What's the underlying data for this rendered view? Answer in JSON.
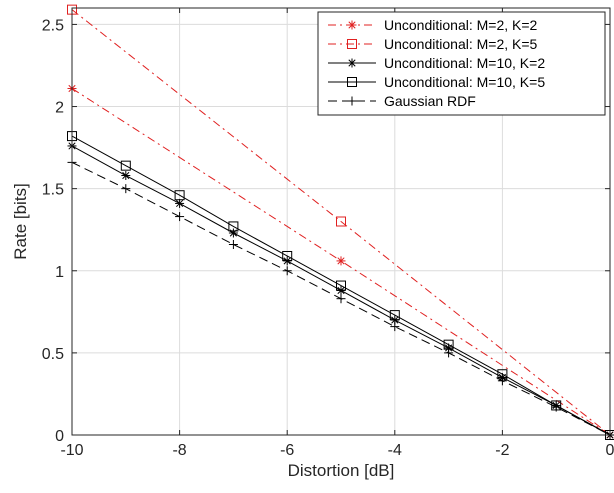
{
  "chart_data": {
    "type": "line",
    "xlabel": "Distortion [dB]",
    "ylabel": "Rate [bits]",
    "xlim": [
      -10,
      0
    ],
    "ylim": [
      0,
      2.6
    ],
    "xticks": [
      -10,
      -8,
      -6,
      -4,
      -2,
      0
    ],
    "yticks": [
      0,
      0.5,
      1,
      1.5,
      2,
      2.5
    ],
    "xtick_labels": [
      "-10",
      "-8",
      "-6",
      "-4",
      "-2",
      "0"
    ],
    "ytick_labels": [
      "0",
      "0.5",
      "1",
      "1.5",
      "2",
      "2.5"
    ],
    "grid": true,
    "legend_position": "top-right",
    "series": [
      {
        "name": "Unconditional: M=2, K=2",
        "color": "#e02020",
        "line_style": "dash-dot",
        "marker": "asterisk",
        "x": [
          -10,
          -5,
          0
        ],
        "y": [
          2.11,
          1.06,
          0.0
        ]
      },
      {
        "name": "Unconditional: M=2, K=5",
        "color": "#e02020",
        "line_style": "dash-dot",
        "marker": "square",
        "x": [
          -10,
          -5,
          0
        ],
        "y": [
          2.59,
          1.3,
          0.0
        ]
      },
      {
        "name": "Unconditional: M=10, K=2",
        "color": "#000000",
        "line_style": "solid",
        "marker": "asterisk",
        "x": [
          -10,
          -9,
          -8,
          -7,
          -6,
          -5,
          -4,
          -3,
          -2,
          -1,
          0
        ],
        "y": [
          1.76,
          1.58,
          1.41,
          1.23,
          1.06,
          0.88,
          0.7,
          0.53,
          0.35,
          0.18,
          0.0
        ]
      },
      {
        "name": "Unconditional: M=10, K=5",
        "color": "#000000",
        "line_style": "solid",
        "marker": "square",
        "x": [
          -10,
          -9,
          -8,
          -7,
          -6,
          -5,
          -4,
          -3,
          -2,
          -1,
          0
        ],
        "y": [
          1.82,
          1.64,
          1.46,
          1.27,
          1.09,
          0.91,
          0.73,
          0.55,
          0.37,
          0.18,
          0.0
        ]
      },
      {
        "name": "Gaussian RDF",
        "color": "#000000",
        "line_style": "dashed",
        "marker": "plus",
        "x": [
          -10,
          -9,
          -8,
          -7,
          -6,
          -5,
          -4,
          -3,
          -2,
          -1,
          0
        ],
        "y": [
          1.66,
          1.5,
          1.33,
          1.16,
          1.0,
          0.83,
          0.66,
          0.5,
          0.33,
          0.17,
          0.0
        ]
      }
    ]
  }
}
